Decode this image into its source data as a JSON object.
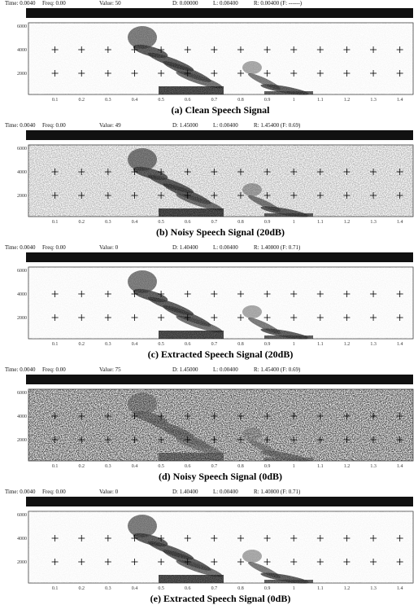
{
  "panels": [
    {
      "header": [
        "Time: 0.0040",
        "Freq: 0.00",
        "Value: 50",
        "D: 0.00000",
        "L: 0.00400",
        "R: 0.00400 (F: ------)"
      ],
      "yticks": [
        "6000",
        "4000",
        "2000"
      ],
      "xticks": [
        "0.1",
        "0.2",
        "0.3",
        "0.4",
        "0.5",
        "0.6",
        "0.7",
        "0.8",
        "0.9",
        "1",
        "1.1",
        "1.2",
        "1.3",
        "1.4"
      ],
      "caption": "(a) Clean Speech Signal"
    },
    {
      "header": [
        "Time: 0.0040",
        "Freq: 0.00",
        "Value: 49",
        "D: 1.45000",
        "L: 0.00400",
        "R: 1.45400 (F: 0.69)"
      ],
      "yticks": [
        "6000",
        "4000",
        "2000"
      ],
      "xticks": [
        "0.1",
        "0.2",
        "0.3",
        "0.4",
        "0.5",
        "0.6",
        "0.7",
        "0.8",
        "0.9",
        "1",
        "1.1",
        "1.2",
        "1.3",
        "1.4"
      ],
      "caption": "(b) Noisy Speech Signal (20dB)"
    },
    {
      "header": [
        "Time: 0.0040",
        "Freq: 0.00",
        "Value: 0",
        "D: 1.40400",
        "L: 0.00400",
        "R: 1.40800 (F: 0.71)"
      ],
      "yticks": [
        "6000",
        "4000",
        "2000"
      ],
      "xticks": [
        "0.1",
        "0.2",
        "0.3",
        "0.4",
        "0.5",
        "0.6",
        "0.7",
        "0.8",
        "0.9",
        "1",
        "1.1",
        "1.2",
        "1.3",
        "1.4"
      ],
      "caption": "(c) Extracted Speech Signal (20dB)"
    },
    {
      "header": [
        "Time: 0.0040",
        "Freq: 0.00",
        "Value: 75",
        "D: 1.45000",
        "L: 0.00400",
        "R: 1.45400 (F: 0.69)"
      ],
      "yticks": [
        "6000",
        "4000",
        "2000"
      ],
      "xticks": [
        "0.1",
        "0.2",
        "0.3",
        "0.4",
        "0.5",
        "0.6",
        "0.7",
        "0.8",
        "0.9",
        "1",
        "1.1",
        "1.2",
        "1.3",
        "1.4"
      ],
      "caption": "(d) Noisy Speech Signal (0dB)"
    },
    {
      "header": [
        "Time: 0.0040",
        "Freq: 0.00",
        "Value: 0",
        "D: 1.40400",
        "L: 0.00400",
        "R: 1.40800 (F: 0.71)"
      ],
      "yticks": [
        "6000",
        "4000",
        "2000"
      ],
      "xticks": [
        "0.1",
        "0.2",
        "0.3",
        "0.4",
        "0.5",
        "0.6",
        "0.7",
        "0.8",
        "0.9",
        "1",
        "1.1",
        "1.2",
        "1.3",
        "1.4"
      ],
      "caption": "(e) Extracted Speech Signal (0dB)"
    }
  ]
}
